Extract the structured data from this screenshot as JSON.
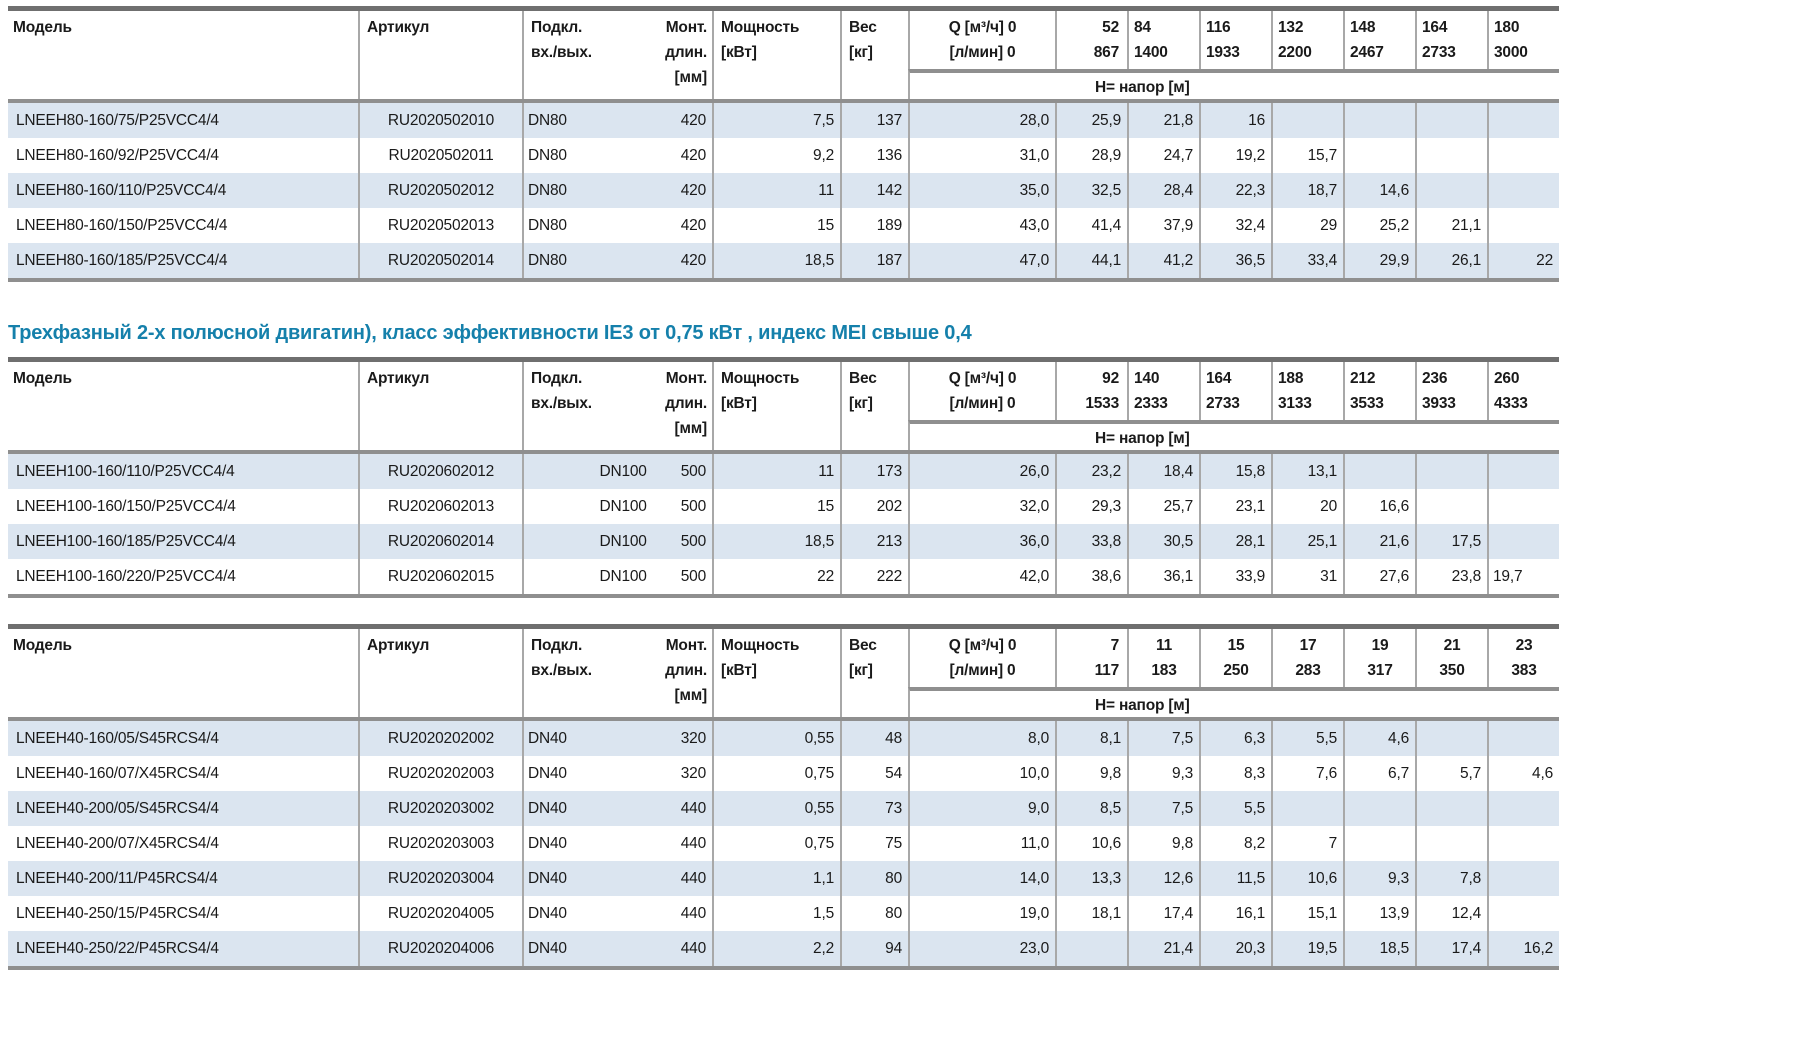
{
  "header_labels": {
    "model": "Модель",
    "article": "Артикул",
    "connection_line1": "Подкл.",
    "connection_line2": "вх./вых.",
    "mount_line1": "Монт.",
    "mount_line2": "длин.",
    "mount_line3": "[мм]",
    "power_line1": "Мощность",
    "power_line2": "[кВт]",
    "weight_line1": "Вес",
    "weight_line2": "[кг]",
    "flow_line1": "Q [м³/ч] 0",
    "flow_line2": "[л/мин] 0",
    "head_row_label": "Н= напор [м]"
  },
  "section_heading": {
    "text": "Трехфазный 2-х полюсной двигатин), класс эффективности IE3 от 0,75 кВт ,  индекс MEI свыше 0,4",
    "color": "#1580ab"
  },
  "colors": {
    "row_stripe": "#dbe5f0",
    "border_light": "#a8a8a8",
    "border_dark": "#8f8f8f",
    "border_top": "#6f6f6f"
  },
  "tables": [
    {
      "name": "lneeh80-table",
      "dn_alignment": "left",
      "flow_header_align": "left",
      "flows_m3h": [
        "52",
        "84",
        "116",
        "132",
        "148",
        "164",
        "180"
      ],
      "flows_lmin": [
        "867",
        "1400",
        "1933",
        "2200",
        "2467",
        "2733",
        "3000"
      ],
      "rows": [
        {
          "model": "LNEEH80-160/75/P25VCC4/4",
          "article": "RU2020502010",
          "dn": "DN80",
          "mount": "420",
          "power": "7,5",
          "weight": "137",
          "h0": "28,0",
          "heads": [
            "25,9",
            "21,8",
            "16",
            "",
            "",
            "",
            ""
          ]
        },
        {
          "model": "LNEEH80-160/92/P25VCC4/4",
          "article": "RU2020502011",
          "dn": "DN80",
          "mount": "420",
          "power": "9,2",
          "weight": "136",
          "h0": "31,0",
          "heads": [
            "28,9",
            "24,7",
            "19,2",
            "15,7",
            "",
            "",
            ""
          ]
        },
        {
          "model": "LNEEH80-160/110/P25VCC4/4",
          "article": "RU2020502012",
          "dn": "DN80",
          "mount": "420",
          "power": "11",
          "weight": "142",
          "h0": "35,0",
          "heads": [
            "32,5",
            "28,4",
            "22,3",
            "18,7",
            "14,6",
            "",
            ""
          ]
        },
        {
          "model": "LNEEH80-160/150/P25VCC4/4",
          "article": "RU2020502013",
          "dn": "DN80",
          "mount": "420",
          "power": "15",
          "weight": "189",
          "h0": "43,0",
          "heads": [
            "41,4",
            "37,9",
            "32,4",
            "29",
            "25,2",
            "21,1",
            ""
          ]
        },
        {
          "model": "LNEEH80-160/185/P25VCC4/4",
          "article": "RU2020502014",
          "dn": "DN80",
          "mount": "420",
          "power": "18,5",
          "weight": "187",
          "h0": "47,0",
          "heads": [
            "44,1",
            "41,2",
            "36,5",
            "33,4",
            "29,9",
            "26,1",
            "22"
          ]
        }
      ]
    },
    {
      "name": "lneeh100-table",
      "dn_alignment": "right",
      "flow_header_align": "left",
      "flows_m3h": [
        "92",
        "140",
        "164",
        "188",
        "212",
        "236",
        "260"
      ],
      "flows_lmin": [
        "1533",
        "2333",
        "2733",
        "3133",
        "3533",
        "3933",
        "4333"
      ],
      "rows": [
        {
          "model": "LNEEH100-160/110/P25VCC4/4",
          "article": "RU2020602012",
          "dn": "DN100",
          "mount": "500",
          "power": "11",
          "weight": "173",
          "h0": "26,0",
          "heads": [
            "23,2",
            "18,4",
            "15,8",
            "13,1",
            "",
            "",
            ""
          ]
        },
        {
          "model": "LNEEH100-160/150/P25VCC4/4",
          "article": "RU2020602013",
          "dn": "DN100",
          "mount": "500",
          "power": "15",
          "weight": "202",
          "h0": "32,0",
          "heads": [
            "29,3",
            "25,7",
            "23,1",
            "20",
            "16,6",
            "",
            ""
          ]
        },
        {
          "model": "LNEEH100-160/185/P25VCC4/4",
          "article": "RU2020602014",
          "dn": "DN100",
          "mount": "500",
          "power": "18,5",
          "weight": "213",
          "h0": "36,0",
          "heads": [
            "33,8",
            "30,5",
            "28,1",
            "25,1",
            "21,6",
            "17,5",
            ""
          ]
        },
        {
          "model": "LNEEH100-160/220/P25VCC4/4",
          "article": "RU2020602015",
          "dn": "DN100",
          "mount": "500",
          "power": "22",
          "weight": "222",
          "h0": "42,0",
          "heads": [
            "38,6",
            "36,1",
            "33,9",
            "31",
            "27,6",
            "23,8",
            "19,7"
          ],
          "last_head_left": true
        }
      ]
    },
    {
      "name": "lneeh40-table",
      "dn_alignment": "left",
      "flow_header_align": "center",
      "flows_m3h": [
        "7",
        "11",
        "15",
        "17",
        "19",
        "21",
        "23"
      ],
      "flows_lmin": [
        "117",
        "183",
        "250",
        "283",
        "317",
        "350",
        "383"
      ],
      "rows": [
        {
          "model": "LNEEH40-160/05/S45RCS4/4",
          "article": "RU2020202002",
          "dn": "DN40",
          "mount": "320",
          "power": "0,55",
          "weight": "48",
          "h0": "8,0",
          "heads": [
            "8,1",
            "7,5",
            "6,3",
            "5,5",
            "4,6",
            "",
            ""
          ]
        },
        {
          "model": "LNEEH40-160/07/X45RCS4/4",
          "article": "RU2020202003",
          "dn": "DN40",
          "mount": "320",
          "power": "0,75",
          "weight": "54",
          "h0": "10,0",
          "heads": [
            "9,8",
            "9,3",
            "8,3",
            "7,6",
            "6,7",
            "5,7",
            "4,6"
          ]
        },
        {
          "model": "LNEEH40-200/05/S45RCS4/4",
          "article": "RU2020203002",
          "dn": "DN40",
          "mount": "440",
          "power": "0,55",
          "weight": "73",
          "h0": "9,0",
          "heads": [
            "8,5",
            "7,5",
            "5,5",
            "",
            "",
            "",
            ""
          ]
        },
        {
          "model": "LNEEH40-200/07/X45RCS4/4",
          "article": "RU2020203003",
          "dn": "DN40",
          "mount": "440",
          "power": "0,75",
          "weight": "75",
          "h0": "11,0",
          "heads": [
            "10,6",
            "9,8",
            "8,2",
            "7",
            "",
            "",
            ""
          ]
        },
        {
          "model": "LNEEH40-200/11/P45RCS4/4",
          "article": "RU2020203004",
          "dn": "DN40",
          "mount": "440",
          "power": "1,1",
          "weight": "80",
          "h0": "14,0",
          "heads": [
            "13,3",
            "12,6",
            "11,5",
            "10,6",
            "9,3",
            "7,8",
            ""
          ]
        },
        {
          "model": "LNEEH40-250/15/P45RCS4/4",
          "article": "RU2020204005",
          "dn": "DN40",
          "mount": "440",
          "power": "1,5",
          "weight": "80",
          "h0": "19,0",
          "heads": [
            "18,1",
            "17,4",
            "16,1",
            "15,1",
            "13,9",
            "12,4",
            ""
          ]
        },
        {
          "model": "LNEEH40-250/22/P45RCS4/4",
          "article": "RU2020204006",
          "dn": "DN40",
          "mount": "440",
          "power": "2,2",
          "weight": "94",
          "h0": "23,0",
          "heads": [
            "",
            "21,4",
            "20,3",
            "19,5",
            "18,5",
            "17,4",
            "16,2"
          ]
        }
      ]
    }
  ]
}
